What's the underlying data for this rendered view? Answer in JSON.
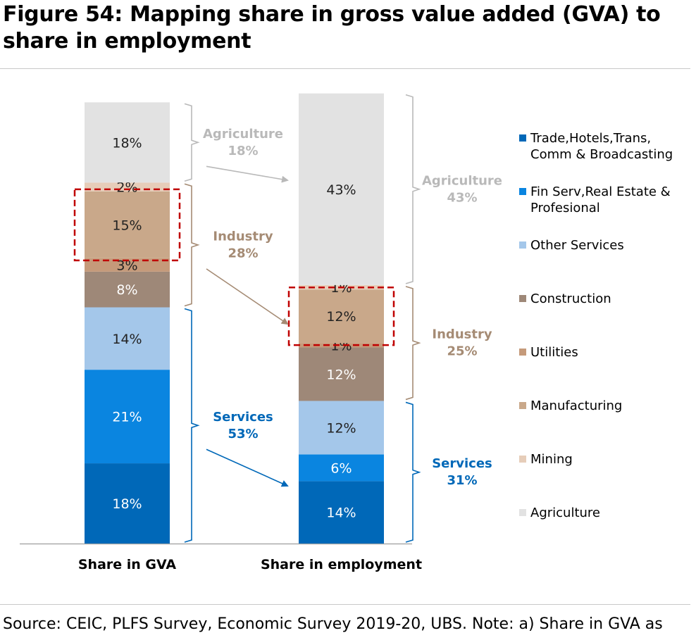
{
  "title": "Figure 54: Mapping share in gross value added (GVA) to share in employment",
  "source": "Source: CEIC, PLFS Survey, Economic Survey 2019-20, UBS. Note: a) Share in GVA as",
  "chart_data": {
    "type": "bar",
    "stacked": true,
    "categories": [
      "Share in GVA",
      "Share in employment"
    ],
    "series": [
      {
        "name": "Trade,Hotels,Trans, Comm & Broadcasting",
        "values": [
          18,
          14
        ],
        "labels": [
          "18%",
          "14%"
        ],
        "color": "#0068b8"
      },
      {
        "name": "Fin Serv,Real Estate & Profesional",
        "values": [
          21,
          6
        ],
        "labels": [
          "21%",
          "6%"
        ],
        "color": "#0a85e0"
      },
      {
        "name": "Other Services",
        "values": [
          14,
          12
        ],
        "labels": [
          "14%",
          "12%"
        ],
        "color": "#a4c7ea"
      },
      {
        "name": "Construction",
        "values": [
          8,
          12
        ],
        "labels": [
          "8%",
          "12%"
        ],
        "color": "#9e8878"
      },
      {
        "name": "Utilities",
        "values": [
          3,
          1
        ],
        "labels": [
          "3%",
          "1%"
        ],
        "color": "#c59a7a"
      },
      {
        "name": "Manufacturing",
        "values": [
          15,
          12
        ],
        "labels": [
          "15%",
          "12%"
        ],
        "color": "#c9a88a"
      },
      {
        "name": "Mining",
        "values": [
          2,
          1
        ],
        "labels": [
          "2%",
          "1%"
        ],
        "color": "#e6cdb9"
      },
      {
        "name": "Agriculture",
        "values": [
          18,
          43
        ],
        "labels": [
          "18%",
          "43%"
        ],
        "color": "#e2e2e2"
      }
    ],
    "ylim": [
      0,
      100
    ],
    "legend": "right",
    "grid": false,
    "groups": [
      {
        "name": "Agriculture",
        "values": [
          "18%",
          "43%"
        ],
        "color": "#b9b9b9",
        "from": 7,
        "to": 7
      },
      {
        "name": "Industry",
        "values": [
          "28%",
          "25%"
        ],
        "color": "#a58b74",
        "from": 3,
        "to": 6
      },
      {
        "name": "Services",
        "values": [
          "53%",
          "31%"
        ],
        "color": "#0068b8",
        "from": 0,
        "to": 2
      }
    ],
    "highlight_series": 5,
    "highlight_color": "#c00000"
  }
}
